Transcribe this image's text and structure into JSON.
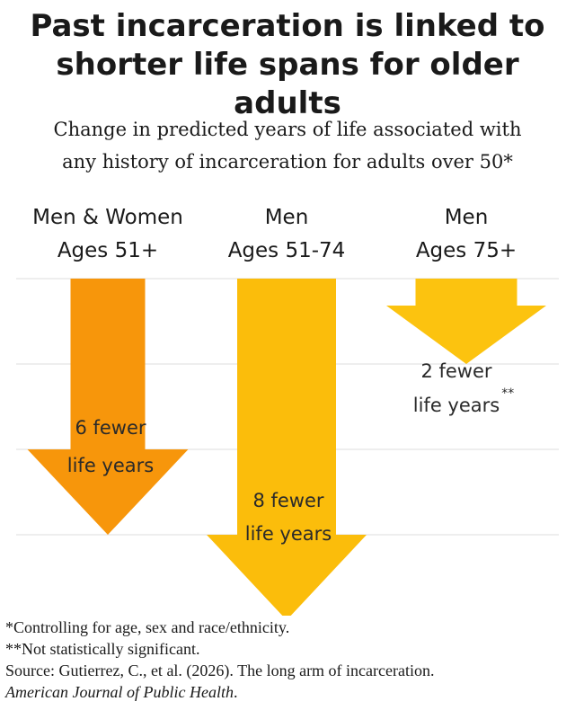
{
  "title_line1": "Past incarceration is linked to",
  "title_line2": "shorter life spans for older adults",
  "subtitle_line1": "Change in predicted years of life associated with",
  "subtitle_line2": "any history of incarceration for adults over 50*",
  "chart_data": {
    "type": "bar",
    "title": "Past incarceration is linked to shorter life spans for older adults",
    "subtitle": "Change in predicted years of life associated with any history of incarceration for adults over 50*",
    "categories": [
      {
        "line1": "Men & Women",
        "line2": "Ages 51+"
      },
      {
        "line1": "Men",
        "line2": "Ages 51-74"
      },
      {
        "line1": "Men",
        "line2": "Ages 75+"
      }
    ],
    "values": [
      -6,
      -8,
      -2
    ],
    "value_labels": [
      {
        "line1": "6 fewer",
        "line2": "life years",
        "mark": ""
      },
      {
        "line1": "8 fewer",
        "line2": "life years",
        "mark": ""
      },
      {
        "line1": "2 fewer",
        "line2": "life years",
        "mark": "**"
      }
    ],
    "colors": [
      "#f7960b",
      "#fbbd0b",
      "#fcc30f"
    ],
    "ylim": [
      -8,
      0
    ],
    "gridlines": [
      0,
      -2,
      -4,
      -6,
      -8
    ],
    "grid": true,
    "legend": "none"
  },
  "footnotes": {
    "note1": "*Controlling for age, sex and race/ethnicity.",
    "note2": "**Not statistically significant.",
    "source": "Source: Gutierrez, C., et al. (2026). The long arm of incarceration.",
    "journal": "American Journal of Public Health",
    "journal_end": "."
  }
}
